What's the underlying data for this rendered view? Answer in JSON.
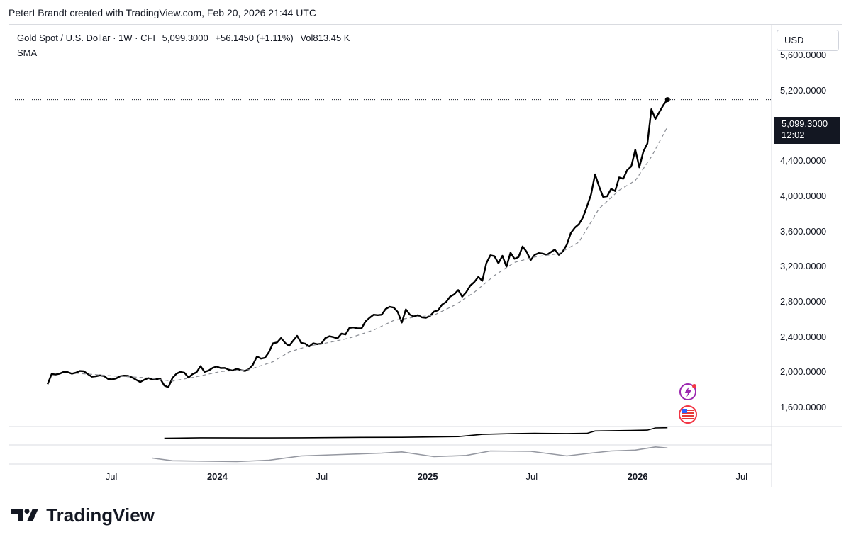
{
  "header": {
    "text": "PeterLBrandt created with TradingView.com, Feb 20, 2026 21:44 UTC"
  },
  "legend": {
    "symbol": "Gold Spot / U.S. Dollar · 1W · CFI",
    "last": "5,099.3000",
    "change": "+56.1450 (+1.11%)",
    "volume": "Vol813.45 K",
    "indicator": "SMA"
  },
  "currency_button": "USD",
  "price_badge": {
    "price": "5,099.3000",
    "countdown": "12:02"
  },
  "icons": [
    "lightning-event-icon",
    "us-flag-event-icon"
  ],
  "brand": "TradingView",
  "chart_data": {
    "type": "line",
    "ylim": [
      1400,
      5950
    ],
    "y_ticks": [
      1600,
      2000,
      2400,
      2800,
      3200,
      3600,
      4000,
      4400,
      4800,
      5200,
      5600
    ],
    "y_tick_labels": [
      "1,600.0000",
      "2,000.0000",
      "2,400.0000",
      "2,800.0000",
      "3,200.0000",
      "3,600.0000",
      "4,000.0000",
      "4,400.0000",
      "4,800.0000",
      "5,200.0000",
      "5,600.0000"
    ],
    "x_labels": [
      {
        "label": "Jul",
        "date": "2023-07-01",
        "bold": false
      },
      {
        "label": "2024",
        "date": "2024-01-01",
        "bold": true
      },
      {
        "label": "Jul",
        "date": "2024-07-01",
        "bold": false
      },
      {
        "label": "2025",
        "date": "2025-01-01",
        "bold": true
      },
      {
        "label": "Jul",
        "date": "2025-07-01",
        "bold": false
      },
      {
        "label": "2026",
        "date": "2026-01-01",
        "bold": true
      },
      {
        "label": "Jul",
        "date": "2026-07-01",
        "bold": false
      }
    ],
    "xlim": [
      "2023-01-01",
      "2026-08-20"
    ],
    "last_price": 5099.3,
    "series": [
      {
        "style": "solid",
        "points": [
          [
            "2023-03-10",
            1865
          ],
          [
            "2023-03-17",
            1980
          ],
          [
            "2023-03-24",
            1975
          ],
          [
            "2023-03-31",
            1985
          ],
          [
            "2023-04-07",
            2005
          ],
          [
            "2023-04-14",
            2002
          ],
          [
            "2023-04-21",
            1985
          ],
          [
            "2023-04-28",
            1995
          ],
          [
            "2023-05-05",
            2015
          ],
          [
            "2023-05-12",
            2012
          ],
          [
            "2023-05-19",
            1980
          ],
          [
            "2023-05-26",
            1950
          ],
          [
            "2023-06-02",
            1955
          ],
          [
            "2023-06-09",
            1965
          ],
          [
            "2023-06-16",
            1958
          ],
          [
            "2023-06-23",
            1925
          ],
          [
            "2023-06-30",
            1920
          ],
          [
            "2023-07-07",
            1930
          ],
          [
            "2023-07-14",
            1955
          ],
          [
            "2023-07-21",
            1962
          ],
          [
            "2023-07-28",
            1960
          ],
          [
            "2023-08-04",
            1942
          ],
          [
            "2023-08-11",
            1915
          ],
          [
            "2023-08-18",
            1890
          ],
          [
            "2023-08-25",
            1915
          ],
          [
            "2023-09-01",
            1935
          ],
          [
            "2023-09-08",
            1920
          ],
          [
            "2023-09-15",
            1925
          ],
          [
            "2023-09-22",
            1925
          ],
          [
            "2023-09-29",
            1850
          ],
          [
            "2023-10-06",
            1830
          ],
          [
            "2023-10-13",
            1935
          ],
          [
            "2023-10-20",
            1985
          ],
          [
            "2023-10-27",
            2005
          ],
          [
            "2023-11-03",
            1995
          ],
          [
            "2023-11-10",
            1940
          ],
          [
            "2023-11-17",
            1980
          ],
          [
            "2023-11-24",
            2000
          ],
          [
            "2023-12-01",
            2070
          ],
          [
            "2023-12-08",
            2005
          ],
          [
            "2023-12-15",
            2020
          ],
          [
            "2023-12-22",
            2050
          ],
          [
            "2023-12-29",
            2065
          ],
          [
            "2024-01-05",
            2048
          ],
          [
            "2024-01-12",
            2050
          ],
          [
            "2024-01-19",
            2030
          ],
          [
            "2024-01-26",
            2020
          ],
          [
            "2024-02-02",
            2040
          ],
          [
            "2024-02-09",
            2025
          ],
          [
            "2024-02-16",
            2015
          ],
          [
            "2024-02-23",
            2035
          ],
          [
            "2024-03-01",
            2085
          ],
          [
            "2024-03-08",
            2180
          ],
          [
            "2024-03-15",
            2155
          ],
          [
            "2024-03-22",
            2165
          ],
          [
            "2024-03-29",
            2230
          ],
          [
            "2024-04-05",
            2330
          ],
          [
            "2024-04-12",
            2340
          ],
          [
            "2024-04-19",
            2390
          ],
          [
            "2024-04-26",
            2335
          ],
          [
            "2024-05-03",
            2300
          ],
          [
            "2024-05-10",
            2360
          ],
          [
            "2024-05-17",
            2415
          ],
          [
            "2024-05-24",
            2335
          ],
          [
            "2024-05-31",
            2325
          ],
          [
            "2024-06-07",
            2295
          ],
          [
            "2024-06-14",
            2330
          ],
          [
            "2024-06-21",
            2320
          ],
          [
            "2024-06-28",
            2325
          ],
          [
            "2024-07-05",
            2390
          ],
          [
            "2024-07-12",
            2410
          ],
          [
            "2024-07-19",
            2400
          ],
          [
            "2024-07-26",
            2385
          ],
          [
            "2024-08-02",
            2440
          ],
          [
            "2024-08-09",
            2430
          ],
          [
            "2024-08-16",
            2505
          ],
          [
            "2024-08-23",
            2510
          ],
          [
            "2024-08-30",
            2500
          ],
          [
            "2024-09-06",
            2500
          ],
          [
            "2024-09-13",
            2580
          ],
          [
            "2024-09-20",
            2620
          ],
          [
            "2024-09-27",
            2655
          ],
          [
            "2024-10-04",
            2650
          ],
          [
            "2024-10-11",
            2655
          ],
          [
            "2024-10-18",
            2720
          ],
          [
            "2024-10-25",
            2745
          ],
          [
            "2024-11-01",
            2735
          ],
          [
            "2024-11-08",
            2685
          ],
          [
            "2024-11-15",
            2565
          ],
          [
            "2024-11-22",
            2715
          ],
          [
            "2024-11-29",
            2655
          ],
          [
            "2024-12-06",
            2635
          ],
          [
            "2024-12-13",
            2650
          ],
          [
            "2024-12-20",
            2625
          ],
          [
            "2024-12-27",
            2620
          ],
          [
            "2025-01-03",
            2640
          ],
          [
            "2025-01-10",
            2690
          ],
          [
            "2025-01-17",
            2705
          ],
          [
            "2025-01-24",
            2770
          ],
          [
            "2025-01-31",
            2800
          ],
          [
            "2025-02-07",
            2860
          ],
          [
            "2025-02-14",
            2885
          ],
          [
            "2025-02-21",
            2935
          ],
          [
            "2025-02-28",
            2860
          ],
          [
            "2025-03-07",
            2910
          ],
          [
            "2025-03-14",
            2985
          ],
          [
            "2025-03-21",
            3025
          ],
          [
            "2025-03-28",
            3085
          ],
          [
            "2025-04-04",
            3040
          ],
          [
            "2025-04-11",
            3240
          ],
          [
            "2025-04-18",
            3330
          ],
          [
            "2025-04-25",
            3320
          ],
          [
            "2025-05-02",
            3240
          ],
          [
            "2025-05-09",
            3325
          ],
          [
            "2025-05-16",
            3200
          ],
          [
            "2025-05-23",
            3360
          ],
          [
            "2025-05-30",
            3290
          ],
          [
            "2025-06-06",
            3310
          ],
          [
            "2025-06-13",
            3430
          ],
          [
            "2025-06-20",
            3370
          ],
          [
            "2025-06-27",
            3275
          ],
          [
            "2025-07-04",
            3335
          ],
          [
            "2025-07-11",
            3355
          ],
          [
            "2025-07-18",
            3350
          ],
          [
            "2025-07-25",
            3335
          ],
          [
            "2025-08-01",
            3365
          ],
          [
            "2025-08-08",
            3395
          ],
          [
            "2025-08-15",
            3335
          ],
          [
            "2025-08-22",
            3375
          ],
          [
            "2025-08-29",
            3450
          ],
          [
            "2025-09-05",
            3585
          ],
          [
            "2025-09-12",
            3645
          ],
          [
            "2025-09-19",
            3685
          ],
          [
            "2025-09-26",
            3760
          ],
          [
            "2025-10-03",
            3885
          ],
          [
            "2025-10-10",
            4020
          ],
          [
            "2025-10-17",
            4250
          ],
          [
            "2025-10-24",
            4115
          ],
          [
            "2025-10-31",
            3995
          ],
          [
            "2025-11-07",
            4000
          ],
          [
            "2025-11-14",
            4085
          ],
          [
            "2025-11-21",
            4060
          ],
          [
            "2025-11-28",
            4215
          ],
          [
            "2025-12-05",
            4200
          ],
          [
            "2025-12-12",
            4300
          ],
          [
            "2025-12-19",
            4340
          ],
          [
            "2025-12-26",
            4530
          ],
          [
            "2026-01-02",
            4330
          ],
          [
            "2026-01-09",
            4510
          ],
          [
            "2026-01-16",
            4600
          ],
          [
            "2026-01-23",
            4990
          ],
          [
            "2026-01-30",
            4880
          ],
          [
            "2026-02-06",
            4960
          ],
          [
            "2026-02-13",
            5040
          ],
          [
            "2026-02-20",
            5099.3
          ]
        ]
      },
      {
        "style": "dashed",
        "points": [
          [
            "2023-04-28",
            1990
          ],
          [
            "2023-06-30",
            1960
          ],
          [
            "2023-08-25",
            1940
          ],
          [
            "2023-10-13",
            1900
          ],
          [
            "2023-11-24",
            1950
          ],
          [
            "2024-01-05",
            2010
          ],
          [
            "2024-02-23",
            2030
          ],
          [
            "2024-04-05",
            2120
          ],
          [
            "2024-05-03",
            2230
          ],
          [
            "2024-06-07",
            2300
          ],
          [
            "2024-07-12",
            2340
          ],
          [
            "2024-08-16",
            2390
          ],
          [
            "2024-09-27",
            2480
          ],
          [
            "2024-11-01",
            2590
          ],
          [
            "2024-12-06",
            2625
          ],
          [
            "2025-01-10",
            2650
          ],
          [
            "2025-02-14",
            2760
          ],
          [
            "2025-03-21",
            2910
          ],
          [
            "2025-04-25",
            3100
          ],
          [
            "2025-05-30",
            3250
          ],
          [
            "2025-07-04",
            3310
          ],
          [
            "2025-08-15",
            3350
          ],
          [
            "2025-09-19",
            3480
          ],
          [
            "2025-10-24",
            3860
          ],
          [
            "2025-11-28",
            4070
          ],
          [
            "2025-12-26",
            4180
          ],
          [
            "2026-01-23",
            4450
          ],
          [
            "2026-02-20",
            4790
          ]
        ]
      }
    ],
    "volume_pane": {
      "ylim": [
        0,
        1
      ],
      "series": [
        {
          "style": "solid",
          "points": [
            [
              "2023-09-29",
              0.35
            ],
            [
              "2023-12-01",
              0.38
            ],
            [
              "2024-02-23",
              0.37
            ],
            [
              "2024-05-24",
              0.38
            ],
            [
              "2024-08-16",
              0.4
            ],
            [
              "2024-11-15",
              0.41
            ],
            [
              "2025-02-21",
              0.45
            ],
            [
              "2025-04-04",
              0.58
            ],
            [
              "2025-05-23",
              0.62
            ],
            [
              "2025-07-04",
              0.64
            ],
            [
              "2025-08-29",
              0.63
            ],
            [
              "2025-10-03",
              0.64
            ],
            [
              "2025-10-17",
              0.78
            ],
            [
              "2025-11-28",
              0.8
            ],
            [
              "2025-12-19",
              0.81
            ],
            [
              "2026-01-16",
              0.83
            ],
            [
              "2026-01-30",
              0.96
            ],
            [
              "2026-02-20",
              0.97
            ]
          ]
        },
        {
          "style": "solid",
          "points": [
            [
              "2023-09-08",
              0.3
            ],
            [
              "2023-10-13",
              0.15
            ],
            [
              "2023-12-15",
              0.12
            ],
            [
              "2024-02-02",
              0.1
            ],
            [
              "2024-03-29",
              0.18
            ],
            [
              "2024-05-24",
              0.42
            ],
            [
              "2024-08-02",
              0.5
            ],
            [
              "2024-10-11",
              0.58
            ],
            [
              "2024-11-15",
              0.65
            ],
            [
              "2025-01-10",
              0.38
            ],
            [
              "2025-03-07",
              0.45
            ],
            [
              "2025-04-18",
              0.7
            ],
            [
              "2025-06-27",
              0.68
            ],
            [
              "2025-08-29",
              0.42
            ],
            [
              "2025-10-10",
              0.58
            ],
            [
              "2025-11-14",
              0.7
            ],
            [
              "2025-12-26",
              0.75
            ],
            [
              "2026-01-30",
              0.93
            ],
            [
              "2026-02-20",
              0.87
            ]
          ]
        }
      ]
    }
  }
}
